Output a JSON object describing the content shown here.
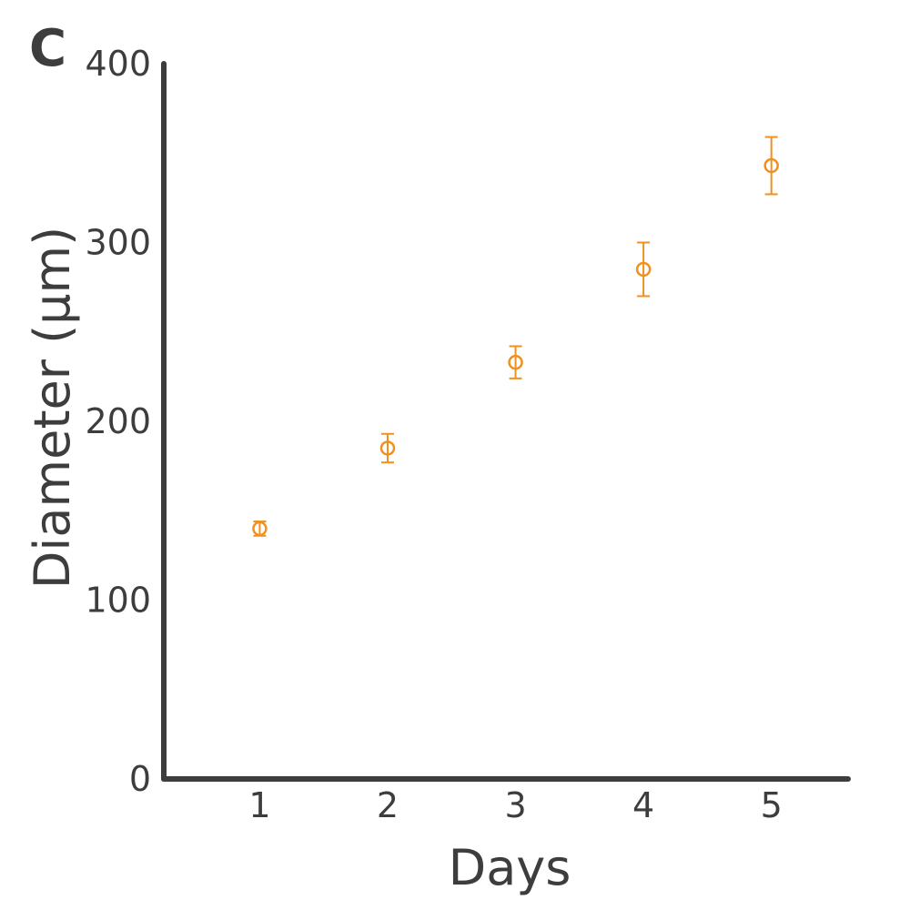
{
  "panel_label": "C",
  "chart_data": {
    "type": "scatter",
    "xlabel": "Days",
    "ylabel": "Diameter (µm)",
    "x": [
      1,
      2,
      3,
      4,
      5
    ],
    "y": [
      140,
      185,
      233,
      285,
      343
    ],
    "error": [
      4,
      8,
      9,
      15,
      16
    ],
    "xlim": [
      0.25,
      5.6
    ],
    "ylim": [
      0,
      400
    ],
    "xticks": [
      "1",
      "2",
      "3",
      "4",
      "5"
    ],
    "yticks": [
      "0",
      "100",
      "200",
      "300",
      "400"
    ],
    "grid": false,
    "marker": "open-circle",
    "color": "#f0901e",
    "axis_color": "#3d3d3d"
  }
}
